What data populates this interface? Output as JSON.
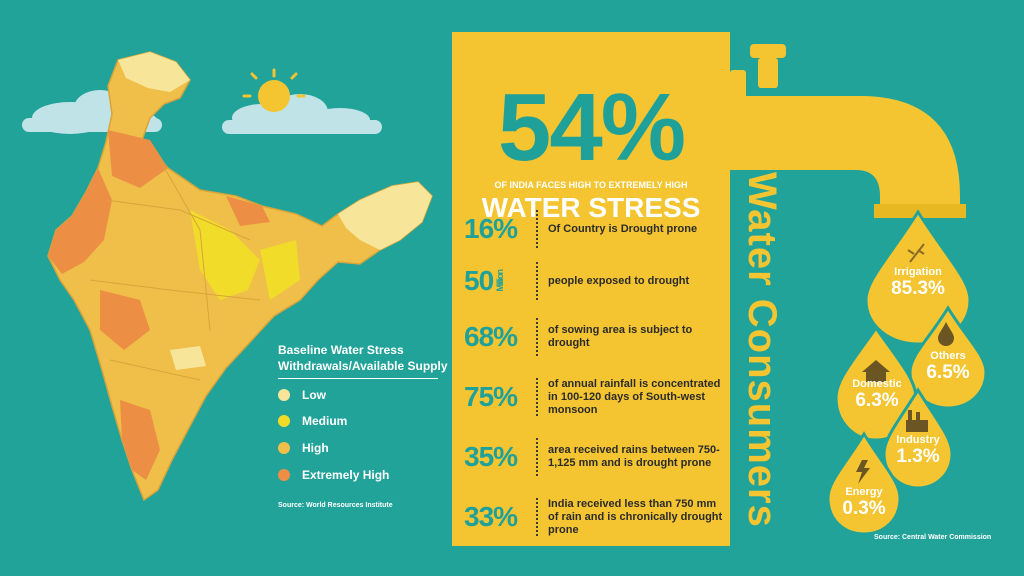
{
  "headline": {
    "percent": "54%",
    "subtitle": "OF INDIA FACES HIGH TO EXTREMELY HIGH",
    "title": "WATER STRESS"
  },
  "stats": [
    {
      "value": "16%",
      "unit": "",
      "text": "Of Country is Drought prone"
    },
    {
      "value": "50",
      "unit": "Million",
      "text": "people exposed to drought"
    },
    {
      "value": "68%",
      "unit": "",
      "text": "of sowing area is subject to drought"
    },
    {
      "value": "75%",
      "unit": "",
      "text": "of annual rainfall is concentrated in 100-120 days of South-west monsoon"
    },
    {
      "value": "35%",
      "unit": "",
      "text": "area received rains between 750-1,125 mm and is drought prone"
    },
    {
      "value": "33%",
      "unit": "",
      "text": "India received less than 750 mm of rain and is chronically drought prone"
    }
  ],
  "legend": {
    "title_line1": "Baseline Water Stress",
    "title_line2": "Withdrawals/Available Supply",
    "items": [
      {
        "label": "Low",
        "color": "#f7e69a"
      },
      {
        "label": "Medium",
        "color": "#f2dc2a"
      },
      {
        "label": "High",
        "color": "#efbf4a"
      },
      {
        "label": "Extremely High",
        "color": "#ec8f45"
      }
    ]
  },
  "source_left": "Source: World Resources Institute",
  "consumers": {
    "title": "Water Consumers",
    "items": [
      {
        "name": "Irrigation",
        "value": "85.3%",
        "icon": "wheat-icon"
      },
      {
        "name": "Others",
        "value": "6.5%",
        "icon": "water-drop-icon"
      },
      {
        "name": "Domestic",
        "value": "6.3%",
        "icon": "house-icon"
      },
      {
        "name": "Industry",
        "value": "1.3%",
        "icon": "factory-icon"
      },
      {
        "name": "Energy",
        "value": "0.3%",
        "icon": "lightning-icon"
      }
    ]
  },
  "source_right": "Source: Central Water Commission",
  "colors": {
    "background": "#21a39a",
    "accent": "#f4c530",
    "teal_text": "#1fa19a"
  }
}
